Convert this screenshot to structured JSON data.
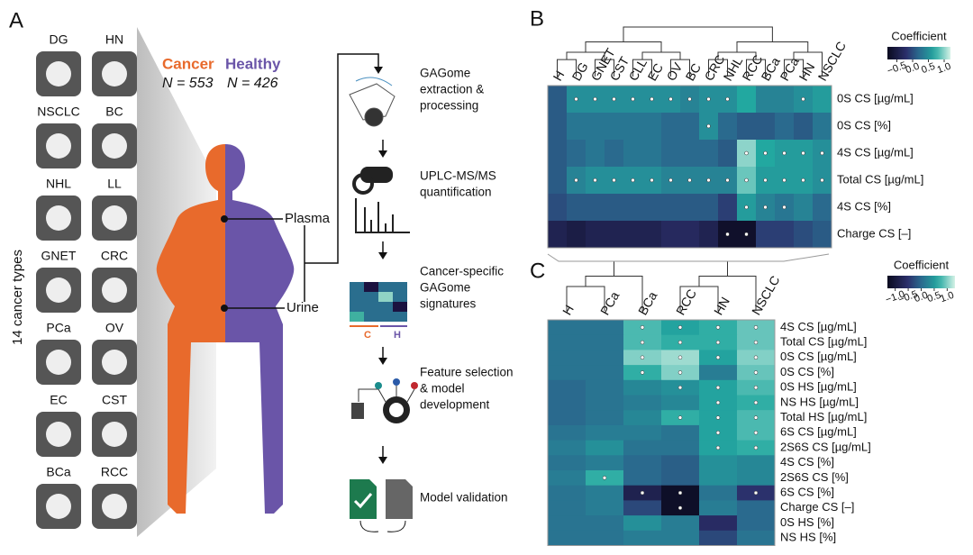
{
  "panel_a": {
    "label": "A",
    "side_label": "14 cancer types",
    "cancer_types": [
      "DG",
      "HN",
      "NSCLC",
      "BC",
      "NHL",
      "LL",
      "GNET",
      "CRC",
      "PCa",
      "OV",
      "EC",
      "CST",
      "BCa",
      "RCC"
    ],
    "cancer": "Cancer",
    "healthy": "Healthy",
    "n_cancer": "N = 553",
    "n_healthy": "N = 426",
    "plasma": "Plasma",
    "urine": "Urine",
    "heatmap_c": "C",
    "heatmap_h": "H",
    "steps": [
      [
        "GAGome",
        "extraction &",
        "processing"
      ],
      [
        "UPLC-MS/MS",
        "quantification"
      ],
      [
        "Cancer-specific",
        "GAGome",
        "signatures"
      ],
      [
        "Feature selection",
        "& model",
        "development"
      ],
      [
        "Model validation"
      ]
    ]
  },
  "panel_b": {
    "label": "B",
    "colorbar_title": "Coefficient",
    "clim": [
      -0.8,
      1.2
    ],
    "colorbar_ticks": [
      {
        "value": -0.5,
        "label": "−0.5"
      },
      {
        "value": 0,
        "label": "0.0"
      },
      {
        "value": 0.5,
        "label": "0.5"
      },
      {
        "value": 1,
        "label": "1.0"
      }
    ],
    "columns": [
      "H",
      "DG",
      "GNET",
      "CST",
      "CLL",
      "EC",
      "OV",
      "BC",
      "CRC",
      "NHL",
      "RCC",
      "BCa",
      "PCa",
      "HN",
      "NSCLC"
    ],
    "rows": [
      "0S CS [µg/mL]",
      "0S CS [%]",
      "4S CS [µg/mL]",
      "Total CS [µg/mL]",
      "4S CS [%]",
      "Charge CS [–]"
    ],
    "values": [
      [
        0.1,
        0.5,
        0.5,
        0.5,
        0.5,
        0.5,
        0.5,
        0.4,
        0.5,
        0.5,
        0.7,
        0.4,
        0.4,
        0.5,
        0.6
      ],
      [
        0.1,
        0.3,
        0.3,
        0.3,
        0.3,
        0.3,
        0.2,
        0.2,
        0.5,
        0.2,
        0.1,
        0.1,
        0.2,
        0.1,
        0.3
      ],
      [
        0.1,
        0.2,
        0.3,
        0.2,
        0.3,
        0.3,
        0.2,
        0.2,
        0.2,
        0.1,
        1.0,
        0.7,
        0.6,
        0.6,
        0.5
      ],
      [
        0.1,
        0.4,
        0.5,
        0.5,
        0.5,
        0.5,
        0.4,
        0.4,
        0.4,
        0.4,
        0.9,
        0.6,
        0.6,
        0.6,
        0.5
      ],
      [
        0.0,
        0.1,
        0.1,
        0.1,
        0.1,
        0.1,
        0.1,
        0.1,
        0.1,
        -0.1,
        0.6,
        0.4,
        0.3,
        0.4,
        0.2
      ],
      [
        -0.4,
        -0.5,
        -0.4,
        -0.4,
        -0.4,
        -0.4,
        -0.3,
        -0.3,
        -0.4,
        -0.7,
        -0.7,
        -0.1,
        -0.1,
        0.0,
        0.1
      ]
    ],
    "significant": [
      [
        1,
        2,
        3,
        4,
        5,
        6,
        7,
        8,
        9,
        13
      ],
      [
        8
      ],
      [
        10,
        11,
        12,
        13,
        14
      ],
      [
        1,
        2,
        3,
        4,
        5,
        6,
        7,
        8,
        9,
        10,
        11,
        12,
        13,
        14
      ],
      [
        10,
        11,
        12
      ],
      [
        9,
        10
      ]
    ]
  },
  "panel_c": {
    "label": "C",
    "colorbar_title": "Coefficient",
    "clim": [
      -1.3,
      1.3
    ],
    "colorbar_ticks": [
      {
        "value": -1,
        "label": "−1.0"
      },
      {
        "value": -0.5,
        "label": "−0.5"
      },
      {
        "value": 0,
        "label": "0.0"
      },
      {
        "value": 0.5,
        "label": "0.5"
      },
      {
        "value": 1,
        "label": "1.0"
      }
    ],
    "columns": [
      "H",
      "PCa",
      "BCa",
      "RCC",
      "HN",
      "NSCLC"
    ],
    "rows": [
      "4S CS [µg/mL]",
      "Total CS [µg/mL]",
      "0S CS [µg/mL]",
      "0S CS [%]",
      "0S HS [µg/mL]",
      "NS HS [µg/mL]",
      "Total HS [µg/mL]",
      "6S CS [µg/mL]",
      "2S6S CS [µg/mL]",
      "4S CS [%]",
      "2S6S CS [%]",
      "6S CS [%]",
      "Charge CS [–]",
      "0S HS [%]",
      "NS HS [%]"
    ],
    "values": [
      [
        0.1,
        0.1,
        0.8,
        0.6,
        0.7,
        0.9
      ],
      [
        0.1,
        0.1,
        0.8,
        0.7,
        0.7,
        0.9
      ],
      [
        0.1,
        0.1,
        1.0,
        1.1,
        0.6,
        1.0
      ],
      [
        0.1,
        0.1,
        0.7,
        1.0,
        0.2,
        0.9
      ],
      [
        0.0,
        0.1,
        0.3,
        0.4,
        0.6,
        0.8
      ],
      [
        0.0,
        0.1,
        0.2,
        0.3,
        0.6,
        0.7
      ],
      [
        0.0,
        0.1,
        0.3,
        0.7,
        0.6,
        0.8
      ],
      [
        0.1,
        0.2,
        0.2,
        0.1,
        0.6,
        0.8
      ],
      [
        0.2,
        0.4,
        0.1,
        0.1,
        0.6,
        0.7
      ],
      [
        0.1,
        0.2,
        0.0,
        -0.1,
        0.4,
        0.3
      ],
      [
        0.2,
        0.7,
        0.0,
        -0.1,
        0.4,
        0.3
      ],
      [
        0.1,
        0.2,
        -0.8,
        -1.2,
        0.1,
        -0.5
      ],
      [
        0.1,
        0.2,
        -0.3,
        -1.2,
        0.2,
        0.0
      ],
      [
        0.1,
        0.1,
        0.4,
        0.2,
        -0.6,
        0.0
      ],
      [
        0.1,
        0.1,
        0.2,
        0.2,
        -0.3,
        0.1
      ]
    ],
    "significant": [
      [
        2,
        3,
        4,
        5
      ],
      [
        2,
        3,
        4,
        5
      ],
      [
        2,
        3,
        4,
        5
      ],
      [
        2,
        3,
        5
      ],
      [
        3,
        4,
        5
      ],
      [
        4,
        5
      ],
      [
        3,
        4,
        5
      ],
      [
        4,
        5
      ],
      [
        4,
        5
      ],
      [],
      [
        1
      ],
      [
        2,
        3,
        5
      ],
      [
        3
      ],
      [],
      []
    ]
  }
}
